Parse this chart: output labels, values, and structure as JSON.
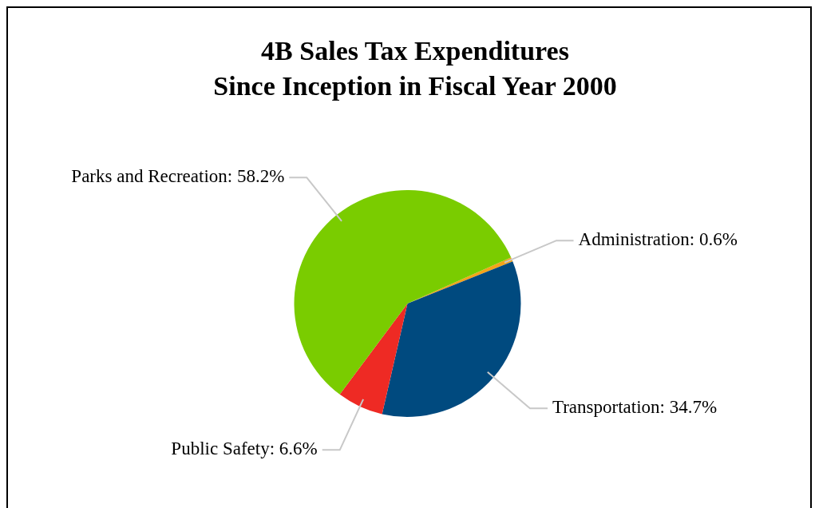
{
  "chart_data": {
    "type": "pie",
    "title": "4B Sales Tax Expenditures\nSince Inception in Fiscal Year 2000",
    "categories": [
      "Administration",
      "Transportation",
      "Public Safety",
      "Parks and Recreation"
    ],
    "values": [
      0.6,
      34.7,
      6.6,
      58.2
    ],
    "value_labels": [
      "0.6%",
      "34.7%",
      "6.6%",
      "58.2%"
    ],
    "colors": [
      "#f5a31a",
      "#004a7f",
      "#ee2a24",
      "#7acc00"
    ],
    "legend": false
  }
}
